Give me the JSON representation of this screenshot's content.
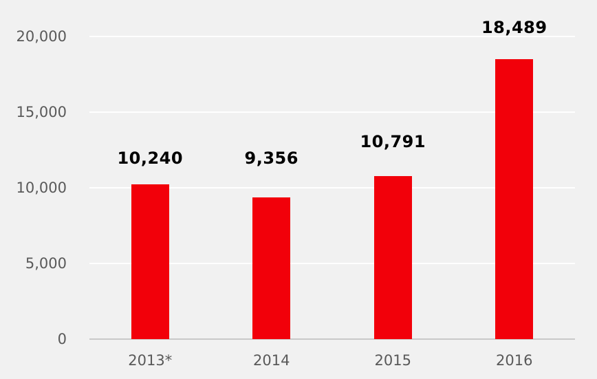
{
  "chart_data": {
    "type": "bar",
    "title": "",
    "xlabel": "",
    "ylabel": "",
    "categories": [
      "2013*",
      "2014",
      "2015",
      "2016"
    ],
    "values": [
      10240,
      9356,
      10791,
      18489
    ],
    "data_labels": [
      "10,240",
      "9,356",
      "10,791",
      "18,489"
    ],
    "ylim": [
      0,
      20000
    ],
    "y_tick_interval": 5000,
    "y_ticks": [
      {
        "value": 0,
        "label": "0"
      },
      {
        "value": 5000,
        "label": "5,000"
      },
      {
        "value": 10000,
        "label": "10,000"
      },
      {
        "value": 15000,
        "label": "15,000"
      },
      {
        "value": 20000,
        "label": "20,000"
      }
    ],
    "grid": true,
    "legend": false,
    "colors": {
      "bar": "#f2000a",
      "background": "#f1f1f1",
      "gridline": "#ffffff",
      "axis_line": "#c9c9c9",
      "tick_label": "#595959",
      "category_label": "#595959",
      "data_label": "#000000"
    }
  }
}
